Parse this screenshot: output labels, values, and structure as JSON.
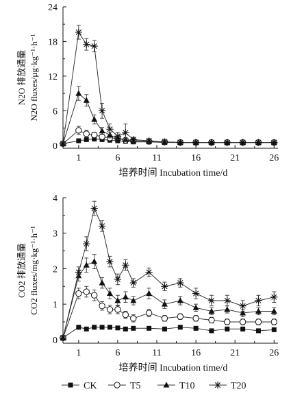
{
  "chart_data": [
    {
      "type": "line",
      "ylabel_cn": "N2O 排放通量",
      "ylabel_en": "N2O fluxes/μg·kg⁻¹·h⁻¹",
      "xlabel": "培养时间 Incubation time/d",
      "xlim": [
        -1,
        26.5
      ],
      "ylim": [
        -0.5,
        24
      ],
      "xticks": [
        1,
        6,
        11,
        16,
        21,
        26
      ],
      "yticks": [
        0,
        6,
        12,
        18,
        24
      ],
      "x": [
        -1,
        1,
        2,
        3,
        4,
        5,
        6,
        7,
        8,
        10,
        12,
        14,
        16,
        18,
        20,
        22,
        24,
        26
      ],
      "series": [
        {
          "name": "CK",
          "marker": "filled-square",
          "values": [
            0.3,
            0.8,
            1.0,
            1.1,
            1.0,
            0.9,
            0.8,
            0.7,
            0.6,
            0.6,
            0.5,
            0.5,
            0.5,
            0.5,
            0.5,
            0.5,
            0.5,
            0.5
          ],
          "errors": [
            0.2,
            0.3,
            0.3,
            0.3,
            0.3,
            0.3,
            0.3,
            0.2,
            0.2,
            0.2,
            0.2,
            0.2,
            0.2,
            0.2,
            0.2,
            0.2,
            0.2,
            0.2
          ]
        },
        {
          "name": "T5",
          "marker": "open-circle",
          "values": [
            0.3,
            2.6,
            2.0,
            1.8,
            1.5,
            1.3,
            1.2,
            0.9,
            0.8,
            0.7,
            0.6,
            0.5,
            0.5,
            0.5,
            0.5,
            0.5,
            0.5,
            0.5
          ],
          "errors": [
            0.2,
            0.7,
            0.6,
            0.5,
            0.4,
            0.4,
            0.4,
            0.3,
            0.3,
            0.3,
            0.2,
            0.2,
            0.2,
            0.2,
            0.2,
            0.2,
            0.2,
            0.2
          ]
        },
        {
          "name": "T10",
          "marker": "filled-triangle",
          "values": [
            0.3,
            9.0,
            7.8,
            4.5,
            2.5,
            1.8,
            1.2,
            1.0,
            0.8,
            0.7,
            0.6,
            0.5,
            0.5,
            0.5,
            0.5,
            0.5,
            0.5,
            0.5
          ],
          "errors": [
            0.2,
            1.2,
            1.0,
            0.8,
            0.6,
            0.5,
            0.4,
            0.3,
            0.3,
            0.3,
            0.2,
            0.2,
            0.2,
            0.2,
            0.2,
            0.2,
            0.2,
            0.2
          ]
        },
        {
          "name": "T20",
          "marker": "star",
          "values": [
            0.3,
            19.6,
            17.5,
            17.2,
            6.0,
            2.8,
            1.6,
            2.2,
            1.0,
            0.8,
            0.6,
            0.5,
            0.5,
            0.5,
            0.5,
            0.5,
            0.5,
            0.5
          ],
          "errors": [
            0.2,
            1.2,
            1.0,
            1.0,
            1.3,
            0.9,
            0.6,
            1.5,
            0.4,
            0.3,
            0.2,
            0.2,
            0.2,
            0.2,
            0.2,
            0.2,
            0.2,
            0.2
          ]
        }
      ]
    },
    {
      "type": "line",
      "ylabel_cn": "CO2 排放通量",
      "ylabel_en": "CO2 fluxes/mg·kg⁻¹·h⁻¹",
      "xlabel": "培养时间 Incubation time/d",
      "xlim": [
        -1,
        26.5
      ],
      "ylim": [
        -0.1,
        4
      ],
      "xticks": [
        1,
        6,
        11,
        16,
        21,
        26
      ],
      "yticks": [
        0,
        1,
        2,
        3,
        4
      ],
      "x": [
        -1,
        1,
        2,
        3,
        4,
        5,
        6,
        7,
        8,
        10,
        12,
        14,
        16,
        18,
        20,
        22,
        24,
        26
      ],
      "series": [
        {
          "name": "CK",
          "marker": "filled-square",
          "values": [
            0.05,
            0.35,
            0.3,
            0.35,
            0.35,
            0.35,
            0.33,
            0.3,
            0.32,
            0.32,
            0.3,
            0.35,
            0.32,
            0.25,
            0.3,
            0.3,
            0.25,
            0.28
          ],
          "errors": [
            0.05,
            0.05,
            0.05,
            0.05,
            0.05,
            0.05,
            0.05,
            0.05,
            0.05,
            0.05,
            0.05,
            0.05,
            0.05,
            0.05,
            0.05,
            0.05,
            0.05,
            0.05
          ]
        },
        {
          "name": "T5",
          "marker": "open-circle",
          "values": [
            0.05,
            1.3,
            1.35,
            1.25,
            0.95,
            0.85,
            0.85,
            0.7,
            0.6,
            0.75,
            0.6,
            0.65,
            0.6,
            0.55,
            0.5,
            0.5,
            0.5,
            0.5
          ],
          "errors": [
            0.05,
            0.15,
            0.15,
            0.15,
            0.12,
            0.12,
            0.12,
            0.1,
            0.1,
            0.1,
            0.08,
            0.08,
            0.08,
            0.08,
            0.08,
            0.08,
            0.08,
            0.08
          ]
        },
        {
          "name": "T10",
          "marker": "filled-triangle",
          "values": [
            0.05,
            1.8,
            2.1,
            2.2,
            1.6,
            1.3,
            1.1,
            1.2,
            1.1,
            1.3,
            1.0,
            1.1,
            0.9,
            0.8,
            0.85,
            0.75,
            0.8,
            0.8
          ],
          "errors": [
            0.05,
            0.15,
            0.2,
            0.2,
            0.15,
            0.15,
            0.15,
            0.15,
            0.12,
            0.15,
            0.12,
            0.12,
            0.1,
            0.1,
            0.1,
            0.1,
            0.1,
            0.1
          ]
        },
        {
          "name": "T20",
          "marker": "star",
          "values": [
            0.05,
            1.9,
            2.7,
            3.7,
            3.2,
            2.2,
            1.7,
            2.1,
            1.6,
            1.9,
            1.5,
            1.6,
            1.3,
            1.1,
            1.1,
            0.95,
            1.1,
            1.2
          ],
          "errors": [
            0.05,
            0.15,
            0.2,
            0.2,
            0.15,
            0.15,
            0.15,
            0.15,
            0.12,
            0.12,
            0.12,
            0.12,
            0.15,
            0.15,
            0.15,
            0.15,
            0.15,
            0.15
          ]
        }
      ]
    }
  ],
  "legend": [
    {
      "label": "CK",
      "marker": "filled-square"
    },
    {
      "label": "T5",
      "marker": "open-circle"
    },
    {
      "label": "T10",
      "marker": "filled-triangle"
    },
    {
      "label": "T20",
      "marker": "star"
    }
  ]
}
